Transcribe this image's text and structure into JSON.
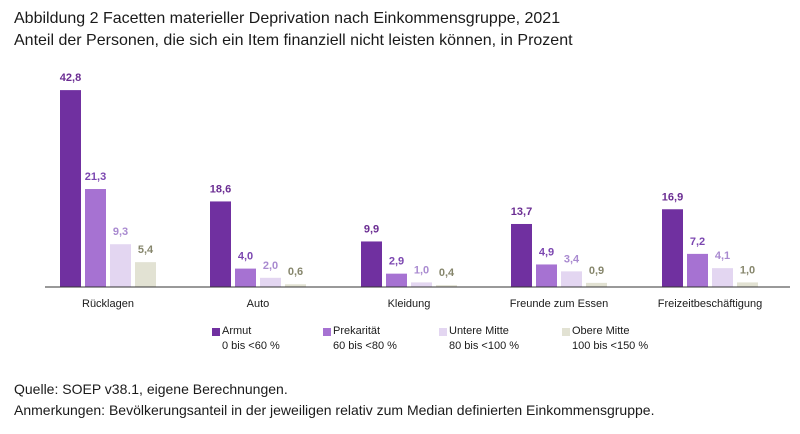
{
  "chart_data": {
    "type": "bar",
    "title": "Abbildung 2 Facetten materieller Deprivation nach Einkommensgruppe, 2021",
    "subtitle": "Anteil der Personen, die sich ein Item finanziell nicht leisten können, in Prozent",
    "categories": [
      "Rücklagen",
      "Auto",
      "Kleidung",
      "Freunde zum Essen",
      "Freizeitbeschäftigung"
    ],
    "series": [
      {
        "name": "Armut",
        "range": "0 bis <60 %",
        "color": "#7030a0",
        "values": [
          42.8,
          18.6,
          9.9,
          13.7,
          16.9
        ],
        "labels": [
          "42,8",
          "18,6",
          "9,9",
          "13,7",
          "16,9"
        ]
      },
      {
        "name": "Prekarität",
        "range": "60 bis <80 %",
        "color": "#a672d2",
        "values": [
          21.3,
          4.0,
          2.9,
          4.9,
          7.2
        ],
        "labels": [
          "21,3",
          "4,0",
          "2,9",
          "4,9",
          "7,2"
        ]
      },
      {
        "name": "Untere Mitte",
        "range": "80 bis <100 %",
        "color": "#e3d6f1",
        "values": [
          9.3,
          2.0,
          1.0,
          3.4,
          4.1
        ],
        "labels": [
          "9,3",
          "2,0",
          "1,0",
          "3,4",
          "4,1"
        ]
      },
      {
        "name": "Obere Mitte",
        "range": "100 bis <150 %",
        "color": "#e2e2d3",
        "values": [
          5.4,
          0.6,
          0.4,
          0.9,
          1.0
        ],
        "labels": [
          "5,4",
          "0,6",
          "0,4",
          "0,9",
          "1,0"
        ]
      }
    ],
    "label_colors": [
      "#6a2c92",
      "#7b46b0",
      "#a98ad0",
      "#86866c"
    ],
    "ylim": [
      0,
      45
    ],
    "legend_position": "bottom",
    "grid": false
  },
  "footer": {
    "source": "Quelle: SOEP v38.1, eigene Berechnungen.",
    "notes": "Anmerkungen: Bevölkerungsanteil in der jeweiligen relativ zum Median definierten Einkommensgruppe."
  }
}
